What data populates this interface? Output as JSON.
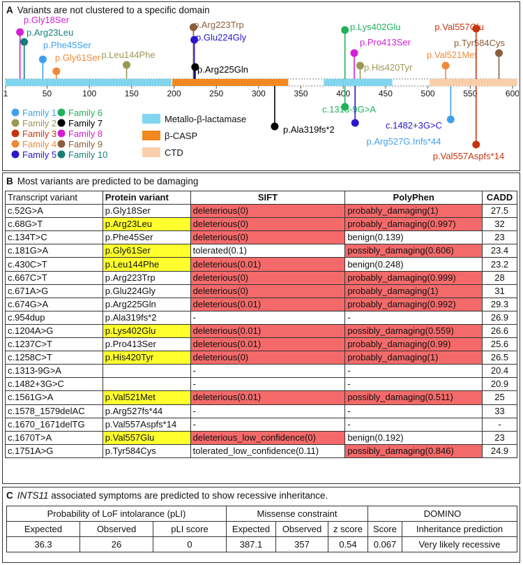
{
  "panelA": {
    "letter": "A",
    "title": "Variants are not clustered to a specific domain",
    "axis_ticks": [
      1,
      50,
      100,
      150,
      200,
      250,
      300,
      350,
      400,
      450,
      500,
      550,
      600
    ],
    "domains_legend": [
      {
        "label": "Metallo-β-lactamase",
        "color": "#80d6ee"
      },
      {
        "label": "β-CASP",
        "color": "#f3891e"
      },
      {
        "label": "CTD",
        "color": "#f9cfaa"
      }
    ],
    "families": [
      {
        "label": "Family 1",
        "color": "#3fa0ec"
      },
      {
        "label": "Family 2",
        "color": "#9a9855"
      },
      {
        "label": "Family 3",
        "color": "#c7350f"
      },
      {
        "label": "Family 4",
        "color": "#ef8a3c"
      },
      {
        "label": "Family 5",
        "color": "#2a17c9"
      },
      {
        "label": "Family 6",
        "color": "#21b15a"
      },
      {
        "label": "Family 7",
        "color": "#000000"
      },
      {
        "label": "Family 8",
        "color": "#d21fd4"
      },
      {
        "label": "Family 9",
        "color": "#8b5e3a"
      },
      {
        "label": "Family 10",
        "color": "#157f79"
      }
    ],
    "variants_above": [
      {
        "label": "p.Gly18Ser",
        "family": 8
      },
      {
        "label": "p.Arg23Leu",
        "family": 10
      },
      {
        "label": "p.Phe45Ser",
        "family": 1
      },
      {
        "label": "p.Gly61Ser",
        "family": 4
      },
      {
        "label": "p.Leu144Phe",
        "family": 2
      },
      {
        "label": "p.Arg223Trp",
        "family": 9
      },
      {
        "label": "p.Glu224Gly",
        "family": 5
      },
      {
        "label": "p.Arg225Gln",
        "family": 7
      },
      {
        "label": "p.Lys402Glu",
        "family": 6
      },
      {
        "label": "p.Pro413Ser",
        "family": 8
      },
      {
        "label": "p.His420Tyr",
        "family": 2
      },
      {
        "label": "p.Val521Met",
        "family": 4
      },
      {
        "label": "p.Val557Glu",
        "family": 3
      },
      {
        "label": "p.Tyr584Cys",
        "family": 9
      }
    ],
    "variants_below": [
      {
        "label": "p.Ala319fs*2",
        "family": 7
      },
      {
        "label": "c.1313-9G>A",
        "family": 6
      },
      {
        "label": "c.1482+3G>C",
        "family": 5
      },
      {
        "label": "p.Arg527G.Infs*44",
        "family": 1
      },
      {
        "label": "p.Val557Aspfs*14",
        "family": 3
      }
    ]
  },
  "panelB": {
    "letter": "B",
    "title": "Most variants are predicted to be damaging",
    "headers": [
      "Transcript variant",
      "Protein variant",
      "SIFT",
      "PolyPhen",
      "CADD"
    ],
    "rows": [
      {
        "t": "c.52G>A",
        "p": "p.Gly18Ser",
        "hl": false,
        "sift": "deleterious(0)",
        "sb": true,
        "poly": "probably_damaging(1)",
        "pb": true,
        "cadd": "27.5"
      },
      {
        "t": "c.68G>T",
        "p": "p.Arg23Leu",
        "hl": true,
        "sift": "deleterious(0)",
        "sb": true,
        "poly": "probably_damaging(0.997)",
        "pb": true,
        "cadd": "32"
      },
      {
        "t": "c.134T>C",
        "p": "p.Phe45Ser",
        "hl": false,
        "sift": "deleterious(0)",
        "sb": true,
        "poly": "benign(0.139)",
        "pb": false,
        "cadd": "23"
      },
      {
        "t": "c.181G>A",
        "p": "p.Gly61Ser",
        "hl": true,
        "sift": "tolerated(0.1)",
        "sb": false,
        "poly": "possibly_damaging(0.606)",
        "pb": true,
        "cadd": "23.4"
      },
      {
        "t": "c.430C>T",
        "p": "p.Leu144Phe",
        "hl": true,
        "sift": "deleterious(0.01)",
        "sb": true,
        "poly": "benign(0.248)",
        "pb": false,
        "cadd": "23.2"
      },
      {
        "t": "c.667C>T",
        "p": "p.Arg223Trp",
        "hl": false,
        "sift": "deleterious(0)",
        "sb": true,
        "poly": "probably_damaging(0.999)",
        "pb": true,
        "cadd": "28"
      },
      {
        "t": "c.671A>G",
        "p": "p.Glu224Gly",
        "hl": false,
        "sift": "deleterious(0)",
        "sb": true,
        "poly": "probably_damaging(1)",
        "pb": true,
        "cadd": "31"
      },
      {
        "t": "c.674G>A",
        "p": "p.Arg225Gln",
        "hl": false,
        "sift": "deleterious(0.01)",
        "sb": true,
        "poly": "probably_damaging(0.992)",
        "pb": true,
        "cadd": "29.3"
      },
      {
        "t": "c.954dup",
        "p": "p.Ala319fs*2",
        "hl": false,
        "sift": "-",
        "sb": false,
        "poly": "-",
        "pb": false,
        "cadd": "26.9"
      },
      {
        "t": "c.1204A>G",
        "p": "p.Lys402Glu",
        "hl": true,
        "sift": "deleterious(0.01)",
        "sb": true,
        "poly": "possibly_damaging(0.559)",
        "pb": true,
        "cadd": "26.6"
      },
      {
        "t": "c.1237C>T",
        "p": "p.Pro413Ser",
        "hl": false,
        "sift": "deleterious(0.01)",
        "sb": true,
        "poly": "probably_damaging(0.99)",
        "pb": true,
        "cadd": "25.6"
      },
      {
        "t": "c.1258C>T",
        "p": "p.His420Tyr",
        "hl": true,
        "sift": "deleterious(0)",
        "sb": true,
        "poly": "probably_damaging(1)",
        "pb": true,
        "cadd": "26.5"
      },
      {
        "t": "c.1313-9G>A",
        "p": "",
        "hl": false,
        "sift": "-",
        "sb": false,
        "poly": "-",
        "pb": false,
        "cadd": "20.4"
      },
      {
        "t": "c.1482+3G>C",
        "p": "",
        "hl": false,
        "sift": "-",
        "sb": false,
        "poly": "-",
        "pb": false,
        "cadd": "20.9"
      },
      {
        "t": "c.1561G>A",
        "p": "p.Val521Met",
        "hl": true,
        "sift": "deleterious(0.01)",
        "sb": true,
        "poly": "possibly_damaging(0.511)",
        "pb": true,
        "cadd": "25"
      },
      {
        "t": "c.1578_1579delAC",
        "p": "p.Arg527fs*44",
        "hl": false,
        "sift": "-",
        "sb": false,
        "poly": "-",
        "pb": false,
        "cadd": "33"
      },
      {
        "t": "c.1670_1671delTG",
        "p": "p.Val557Aspfs*14",
        "hl": false,
        "sift": "-",
        "sb": false,
        "poly": "-",
        "pb": false,
        "cadd": "-"
      },
      {
        "t": "c.1670T>A",
        "p": "p.Val557Glu",
        "hl": true,
        "sift": "deleterious_low_confidence(0)",
        "sb": true,
        "poly": "benign(0.192)",
        "pb": false,
        "cadd": "23"
      },
      {
        "t": "c.1751A>G",
        "p": "p.Tyr584Cys",
        "hl": false,
        "sift": "tolerated_low_confidence(0.11)",
        "sb": false,
        "poly": "possibly_damaging(0.846)",
        "pb": true,
        "cadd": "24.9"
      }
    ]
  },
  "panelC": {
    "letter": "C",
    "gene": "INTS11",
    "title_rest": "associated symptoms are predicted to show recessive inheritance.",
    "group_headers": [
      "Probability of LoF intolarance (pLI)",
      "Missense constraint",
      "DOMINO"
    ],
    "sub_headers": [
      "Expected",
      "Observed",
      "pLI score",
      "Expected",
      "Observed",
      "z score",
      "Score",
      "Inheritance prediction"
    ],
    "values": [
      "36.3",
      "26",
      "0",
      "387.1",
      "357",
      "0.54",
      "0.067",
      "Very likely recessive"
    ]
  }
}
